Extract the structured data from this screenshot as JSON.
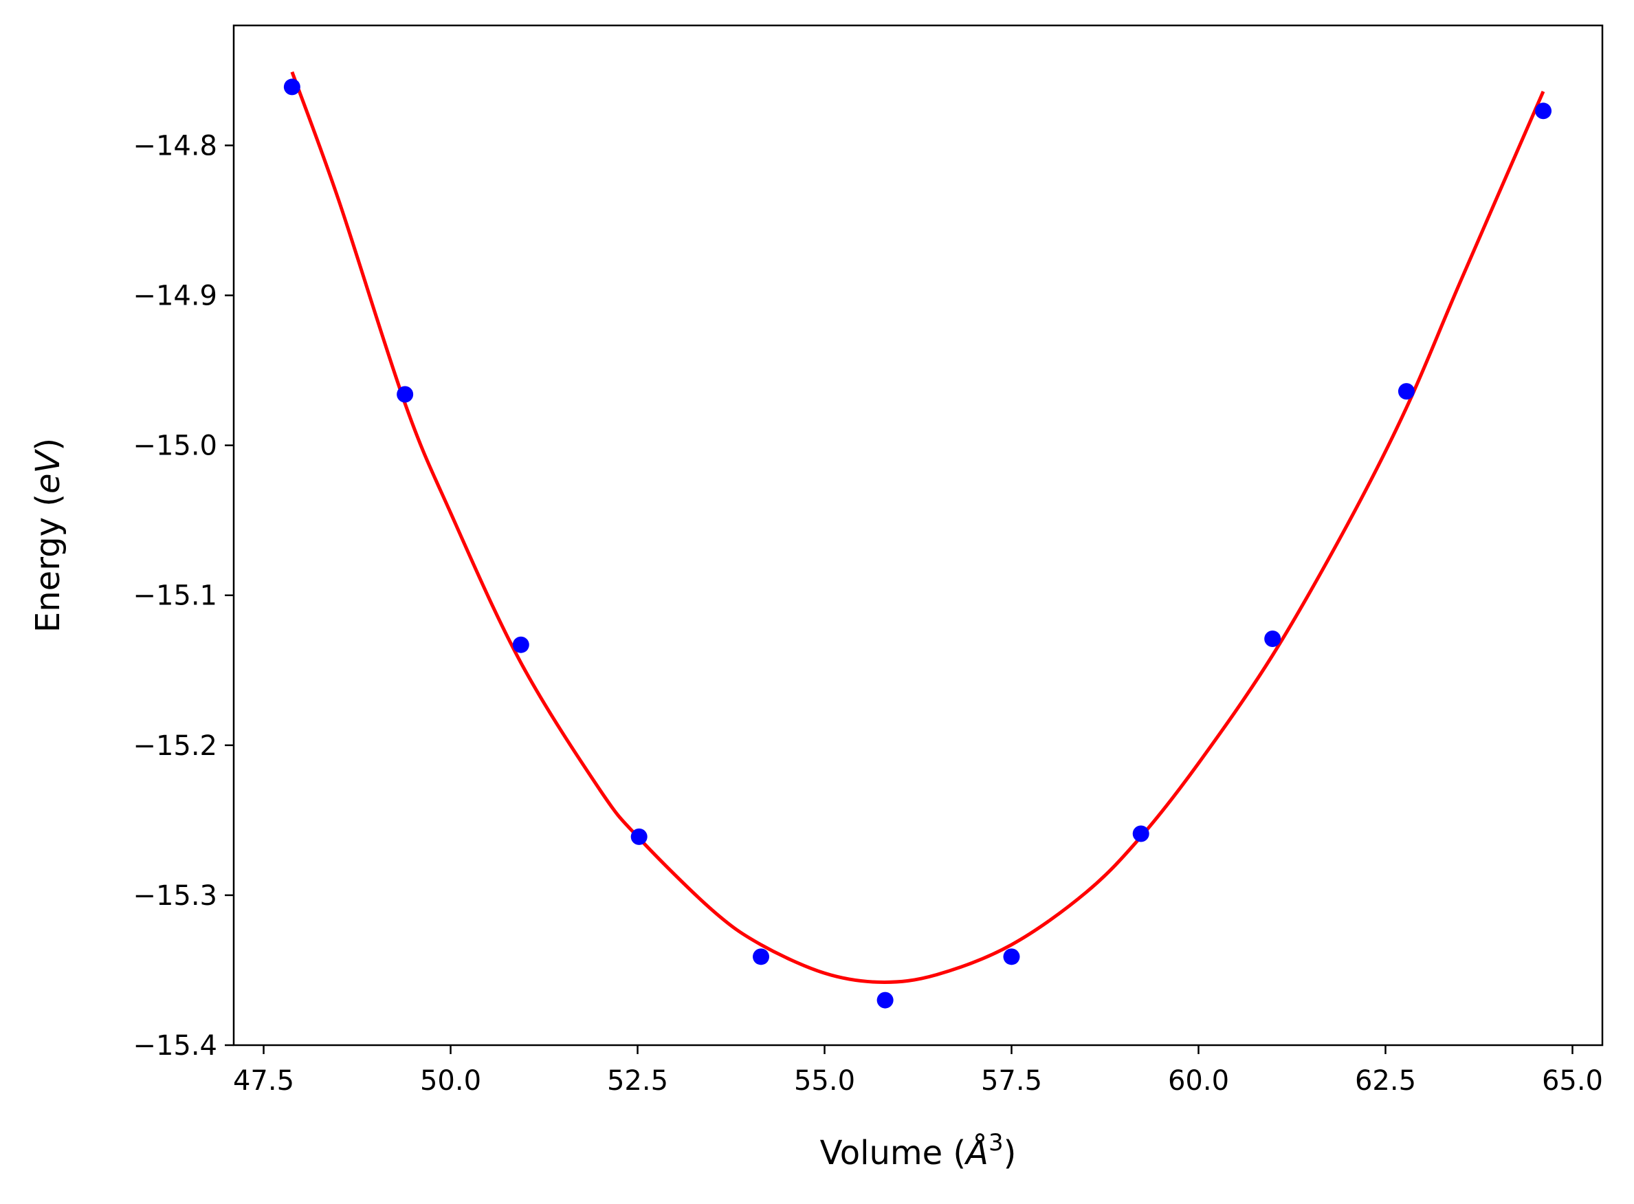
{
  "chart_data": {
    "type": "scatter",
    "title": "",
    "xlabel": "Volume (Å³)",
    "ylabel": "Energy (eV)",
    "xlabel_parts": {
      "prefix": "Volume (",
      "symbol": "Å",
      "superscript": "3",
      "suffix": ")"
    },
    "ylabel_parts": {
      "prefix": "Energy (",
      "italic": "eV",
      "suffix": ")"
    },
    "xlim": [
      47.1,
      65.4
    ],
    "ylim": [
      -15.4,
      -14.72
    ],
    "grid": false,
    "legend": "none",
    "x_ticks": [
      {
        "value": 47.5,
        "label": "47.5"
      },
      {
        "value": 50.0,
        "label": "50.0"
      },
      {
        "value": 52.5,
        "label": "52.5"
      },
      {
        "value": 55.0,
        "label": "55.0"
      },
      {
        "value": 57.5,
        "label": "57.5"
      },
      {
        "value": 60.0,
        "label": "60.0"
      },
      {
        "value": 62.5,
        "label": "62.5"
      },
      {
        "value": 65.0,
        "label": "65.0"
      }
    ],
    "y_ticks": [
      {
        "value": -14.8,
        "label": "−14.8"
      },
      {
        "value": -14.9,
        "label": "−14.9"
      },
      {
        "value": -15.0,
        "label": "−15.0"
      },
      {
        "value": -15.1,
        "label": "−15.1"
      },
      {
        "value": -15.2,
        "label": "−15.2"
      },
      {
        "value": -15.3,
        "label": "−15.3"
      },
      {
        "value": -15.4,
        "label": "−15.4"
      }
    ],
    "series": [
      {
        "kind": "scatter",
        "color": "#0000ff",
        "points": [
          {
            "x": 47.88,
            "y": -14.761
          },
          {
            "x": 49.39,
            "y": -14.966
          },
          {
            "x": 50.94,
            "y": -15.133
          },
          {
            "x": 52.52,
            "y": -15.261
          },
          {
            "x": 54.15,
            "y": -15.341
          },
          {
            "x": 55.81,
            "y": -15.37
          },
          {
            "x": 57.5,
            "y": -15.341
          },
          {
            "x": 59.23,
            "y": -15.259
          },
          {
            "x": 60.99,
            "y": -15.129
          },
          {
            "x": 62.78,
            "y": -14.964
          },
          {
            "x": 64.61,
            "y": -14.777
          }
        ]
      },
      {
        "kind": "line",
        "color": "#ff0000",
        "points": [
          {
            "x": 47.88,
            "y": -14.751
          },
          {
            "x": 48.5,
            "y": -14.836
          },
          {
            "x": 49.39,
            "y": -14.972
          },
          {
            "x": 50.0,
            "y": -15.045
          },
          {
            "x": 50.94,
            "y": -15.145
          },
          {
            "x": 52.0,
            "y": -15.23
          },
          {
            "x": 52.52,
            "y": -15.262
          },
          {
            "x": 53.5,
            "y": -15.31
          },
          {
            "x": 54.15,
            "y": -15.333
          },
          {
            "x": 55.0,
            "y": -15.352
          },
          {
            "x": 55.75,
            "y": -15.358
          },
          {
            "x": 56.5,
            "y": -15.353
          },
          {
            "x": 57.5,
            "y": -15.333
          },
          {
            "x": 58.5,
            "y": -15.298
          },
          {
            "x": 59.23,
            "y": -15.261
          },
          {
            "x": 60.0,
            "y": -15.212
          },
          {
            "x": 60.99,
            "y": -15.14
          },
          {
            "x": 62.0,
            "y": -15.052
          },
          {
            "x": 62.78,
            "y": -14.975
          },
          {
            "x": 63.5,
            "y": -14.891
          },
          {
            "x": 64.61,
            "y": -14.764
          }
        ]
      }
    ]
  }
}
